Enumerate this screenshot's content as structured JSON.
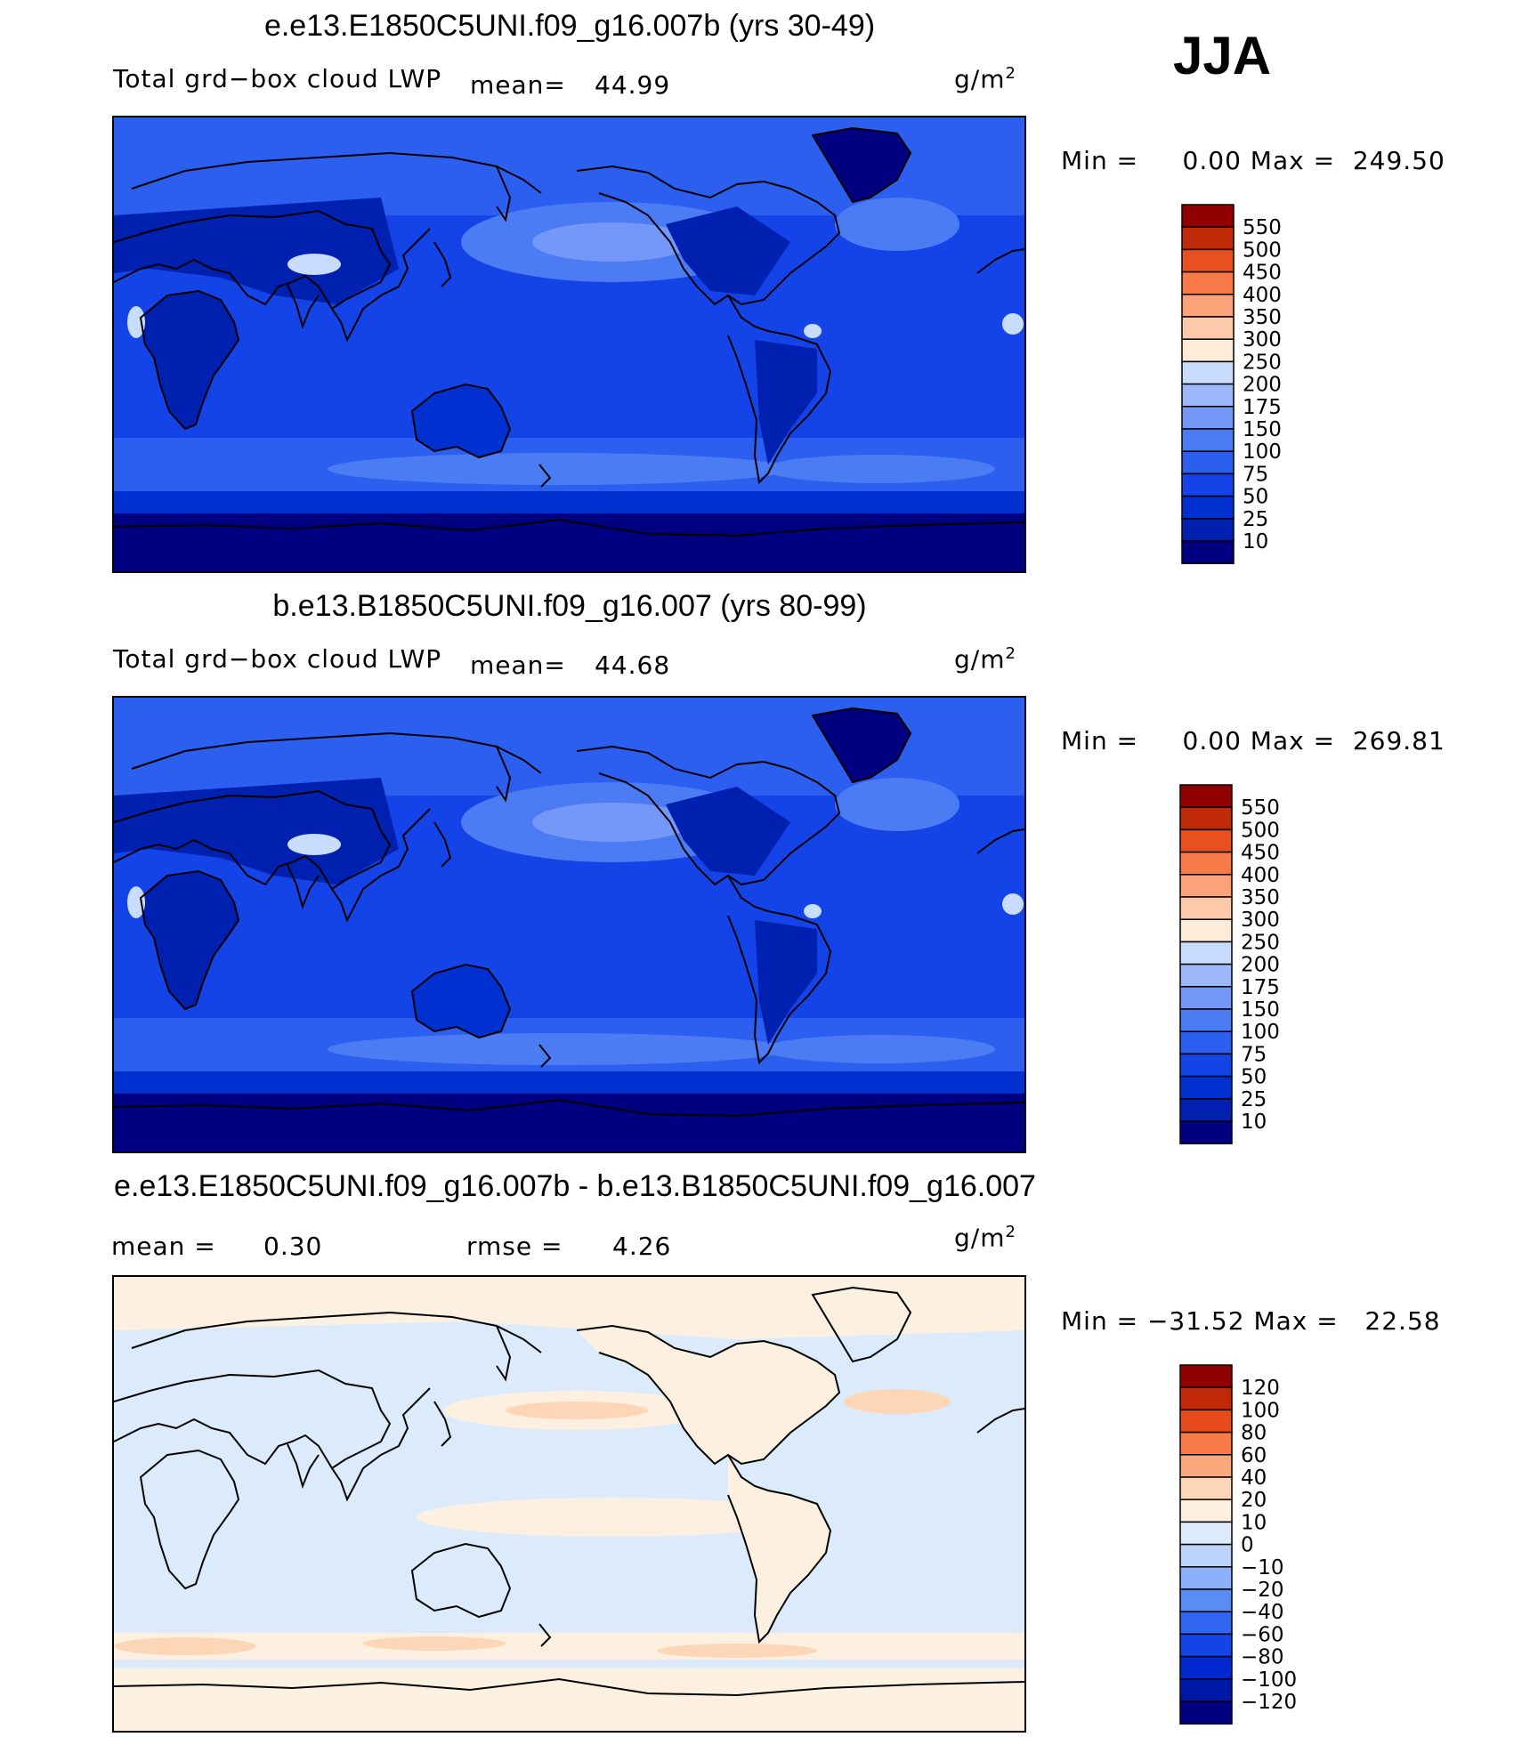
{
  "season": "JJA",
  "panels": [
    {
      "title": "e.e13.E1850C5UNI.f09_g16.007b (yrs 30-49)",
      "variable": "Total grd−box cloud LWP",
      "mean_label": "mean=",
      "mean_value": "44.99",
      "units": "g/m",
      "units_exp": "2",
      "min_max": "Min =     0.00 Max =  249.50",
      "colorbar_labels": [
        "550",
        "500",
        "450",
        "400",
        "350",
        "300",
        "250",
        "200",
        "175",
        "150",
        "100",
        "75",
        "50",
        "25",
        "10"
      ]
    },
    {
      "title": "b.e13.B1850C5UNI.f09_g16.007 (yrs 80-99)",
      "variable": "Total grd−box cloud LWP",
      "mean_label": "mean=",
      "mean_value": "44.68",
      "units": "g/m",
      "units_exp": "2",
      "min_max": "Min =     0.00 Max =  269.81",
      "colorbar_labels": [
        "550",
        "500",
        "450",
        "400",
        "350",
        "300",
        "250",
        "200",
        "175",
        "150",
        "100",
        "75",
        "50",
        "25",
        "10"
      ]
    },
    {
      "title": "e.e13.E1850C5UNI.f09_g16.007b - b.e13.B1850C5UNI.f09_g16.007",
      "mean_label": "mean =",
      "mean_value": "0.30",
      "rmse_label": "rmse =",
      "rmse_value": "4.26",
      "units": "g/m",
      "units_exp": "2",
      "min_max": "Min = −31.52 Max =   22.58",
      "colorbar_labels": [
        "120",
        "100",
        "80",
        "60",
        "40",
        "20",
        "10",
        "0",
        "−10",
        "−20",
        "−40",
        "−60",
        "−80",
        "−100",
        "−120"
      ]
    }
  ],
  "chart_data": [
    {
      "type": "heatmap",
      "title": "e.e13.E1850C5UNI.f09_g16.007b (yrs 30-49)",
      "field": "Total grd-box cloud LWP",
      "units": "g/m2",
      "mean": 44.99,
      "min": 0.0,
      "max": 249.5,
      "contour_levels": [
        10,
        25,
        50,
        75,
        100,
        150,
        175,
        200,
        250,
        300,
        350,
        400,
        450,
        500,
        550
      ]
    },
    {
      "type": "heatmap",
      "title": "b.e13.B1850C5UNI.f09_g16.007 (yrs 80-99)",
      "field": "Total grd-box cloud LWP",
      "units": "g/m2",
      "mean": 44.68,
      "min": 0.0,
      "max": 269.81,
      "contour_levels": [
        10,
        25,
        50,
        75,
        100,
        150,
        175,
        200,
        250,
        300,
        350,
        400,
        450,
        500,
        550
      ]
    },
    {
      "type": "heatmap",
      "title": "e.e13.E1850C5UNI.f09_g16.007b - b.e13.B1850C5UNI.f09_g16.007",
      "units": "g/m2",
      "mean": 0.3,
      "rmse": 4.26,
      "min": -31.52,
      "max": 22.58,
      "contour_levels": [
        -120,
        -100,
        -80,
        -60,
        -40,
        -20,
        -10,
        0,
        10,
        20,
        40,
        60,
        80,
        100,
        120
      ]
    }
  ],
  "colors": {
    "lwp_scale": [
      "#000080",
      "#0020b0",
      "#0030d0",
      "#1444e8",
      "#2c5ef0",
      "#4c7cf4",
      "#7498f8",
      "#9cb8fb",
      "#c8dcfd",
      "#fdecd8",
      "#fccaaa",
      "#fba278",
      "#f87a48",
      "#e85020",
      "#c02a08",
      "#900000"
    ],
    "diff_scale": [
      "#000080",
      "#0018a8",
      "#0028d0",
      "#1444e8",
      "#3066f0",
      "#5a8cf6",
      "#8cb0fa",
      "#bcd4fc",
      "#dcebfb",
      "#fdf0e0",
      "#fdd6b8",
      "#fba87c",
      "#f87a48",
      "#e84c1c",
      "#c02808",
      "#900000"
    ]
  }
}
